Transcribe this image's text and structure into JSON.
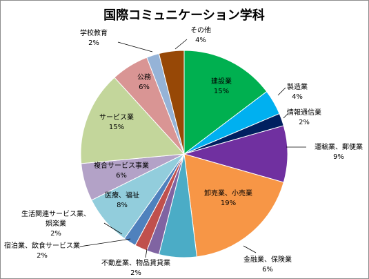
{
  "chart_data": {
    "type": "pie",
    "title": "国際コミュニケーション学科",
    "unit": "%",
    "start_angle_deg": 0,
    "direction": "clockwise",
    "slices": [
      {
        "label": "建設業",
        "value": 15,
        "display": "15%",
        "color": "#00b050"
      },
      {
        "label": "製造業",
        "value": 4,
        "display": "4%",
        "color": "#00b0f0"
      },
      {
        "label": "情報通信業",
        "value": 2,
        "display": "2%",
        "color": "#002060"
      },
      {
        "label": "運輸業、郵便業",
        "value": 9,
        "display": "9%",
        "color": "#7030a0"
      },
      {
        "label": "卸売業、小売業",
        "value": 19,
        "display": "19%",
        "color": "#f79646"
      },
      {
        "label": "金融業、保険業",
        "value": 6,
        "display": "6%",
        "color": "#4bacc6"
      },
      {
        "label": "不動産業、物品賃貸業",
        "value": 2,
        "display": "2%",
        "color": "#8064a2"
      },
      {
        "label": "宿泊業、飲食サービス業",
        "value": 2,
        "display": "2%",
        "color": "#c0504d"
      },
      {
        "label": "生活関連サービス業、娯楽業",
        "value": 2,
        "display": "2%",
        "color": "#4f81bd"
      },
      {
        "label": "医療、福祉",
        "value": 8,
        "display": "8%",
        "color": "#92cddc"
      },
      {
        "label": "複合サービス事業",
        "value": 6,
        "display": "6%",
        "color": "#b3a2c7"
      },
      {
        "label": "サービス業",
        "value": 15,
        "display": "15%",
        "color": "#c3d69b"
      },
      {
        "label": "公務",
        "value": 6,
        "display": "6%",
        "color": "#d99594"
      },
      {
        "label": "学校教育",
        "value": 2,
        "display": "2%",
        "color": "#95b3d7"
      },
      {
        "label": "その他",
        "value": 4,
        "display": "4%",
        "color": "#974806"
      }
    ]
  }
}
